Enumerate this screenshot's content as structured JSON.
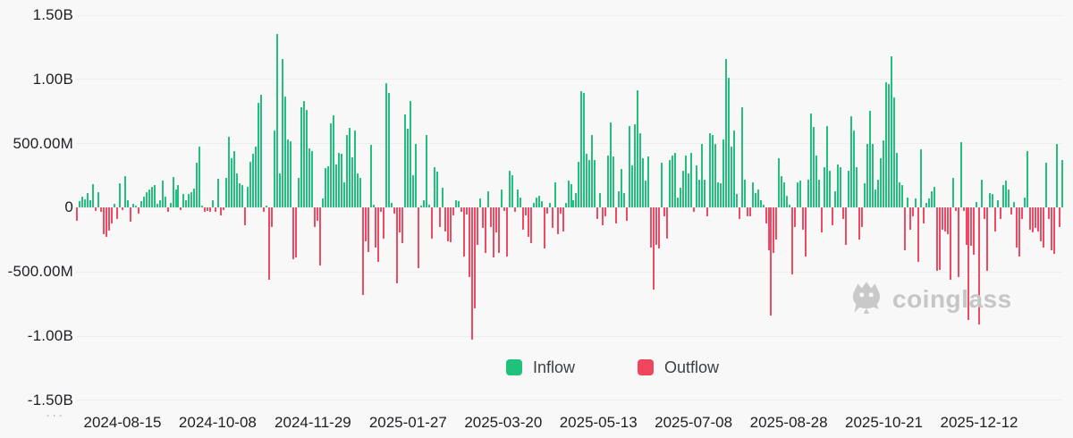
{
  "legend": {
    "inflow_label": "Inflow",
    "outflow_label": "Outflow"
  },
  "watermark": {
    "brand": "coinglass"
  },
  "misc": {
    "ellipsis": "···"
  },
  "colors": {
    "inflow": "#22c07e",
    "outflow": "#ef4a63",
    "legend_inflow_swatch": "#1ec27c",
    "legend_outflow_swatch": "#f0465d",
    "grid": "#eeeeee",
    "axis_text": "#1d1f23",
    "watermark_gray": "#c6c6c6",
    "background": "#f8f8f8"
  },
  "chart_data": {
    "type": "bar",
    "title": "",
    "xlabel": "",
    "ylabel": "",
    "grid": true,
    "legend_position": "bottom-center",
    "unit": "millions USD",
    "ylim_millions": [
      -1500,
      1500
    ],
    "y_ticks": [
      "1.50B",
      "1.00B",
      "500.00M",
      "0",
      "-500.00M",
      "-1.00B",
      "-1.50B"
    ],
    "y_tick_values_millions": [
      1500,
      1000,
      500,
      0,
      -500,
      -1000,
      -1500
    ],
    "x_ticks": [
      "2024-08-15",
      "2024-10-08",
      "2024-11-29",
      "2025-01-27",
      "2025-03-20",
      "2025-05-13",
      "2025-07-08",
      "2025-08-28",
      "2025-10-21",
      "2025-12-12"
    ],
    "series": [
      {
        "name": "Inflow",
        "meaning": "positive daily flow values"
      },
      {
        "name": "Outflow",
        "meaning": "negative daily flow values"
      }
    ],
    "values_millions": [
      -100,
      50,
      85,
      65,
      115,
      60,
      185,
      -25,
      120,
      -30,
      -205,
      -230,
      -180,
      -120,
      30,
      -90,
      190,
      -20,
      245,
      60,
      -110,
      30,
      15,
      -45,
      55,
      85,
      125,
      145,
      160,
      175,
      30,
      60,
      210,
      85,
      -30,
      40,
      240,
      140,
      180,
      -20,
      105,
      60,
      105,
      125,
      150,
      350,
      480,
      15,
      -30,
      -25,
      -30,
      60,
      -35,
      225,
      -60,
      -15,
      235,
      550,
      385,
      440,
      270,
      190,
      175,
      -140,
      165,
      360,
      420,
      480,
      815,
      880,
      -30,
      20,
      -565,
      -150,
      605,
      1355,
      270,
      1160,
      865,
      530,
      515,
      -400,
      -390,
      235,
      780,
      830,
      765,
      465,
      445,
      -150,
      -100,
      -450,
      70,
      310,
      325,
      660,
      720,
      340,
      430,
      420,
      200,
      570,
      620,
      395,
      605,
      270,
      235,
      -680,
      -265,
      -345,
      490,
      25,
      -310,
      -425,
      -30,
      -240,
      970,
      895,
      40,
      -45,
      -590,
      -195,
      -275,
      730,
      615,
      835,
      257,
      500,
      -470,
      15,
      60,
      570,
      25,
      -240,
      315,
      280,
      -148,
      153,
      -183,
      -264,
      -270,
      -60,
      60,
      50,
      -30,
      -380,
      -55,
      -540,
      -1030,
      -785,
      -287,
      72,
      -160,
      -356,
      130,
      -148,
      -390,
      -195,
      -356,
      140,
      -25,
      -380,
      290,
      257,
      -30,
      140,
      83,
      -170,
      -60,
      -229,
      -275,
      37,
      83,
      95,
      50,
      -321,
      -45,
      37,
      -160,
      200,
      -205,
      -45,
      -183,
      37,
      210,
      187,
      60,
      118,
      360,
      905,
      895,
      420,
      373,
      570,
      373,
      -90,
      118,
      -137,
      -67,
      408,
      663,
      397,
      -125,
      130,
      303,
      118,
      -100,
      640,
      327,
      651,
      917,
      581,
      385,
      210,
      397,
      -310,
      -635,
      -287,
      -321,
      350,
      -67,
      -240,
      373,
      408,
      430,
      83,
      153,
      290,
      408,
      268,
      430,
      -30,
      327,
      222,
      500,
      222,
      -67,
      581,
      570,
      500,
      200,
      188,
      535,
      1160,
      1010,
      477,
      605,
      107,
      -90,
      780,
      222,
      -67,
      -67,
      200,
      118,
      140,
      60,
      25,
      -125,
      -335,
      -840,
      -355,
      -250,
      385,
      245,
      200,
      95,
      25,
      -520,
      -150,
      200,
      210,
      -172,
      -380,
      222,
      735,
      627,
      408,
      222,
      -195,
      315,
      640,
      290,
      -137,
      130,
      337,
      315,
      -90,
      -287,
      290,
      710,
      605,
      315,
      -250,
      -150,
      188,
      500,
      755,
      500,
      140,
      222,
      385,
      523,
      975,
      963,
      1177,
      858,
      430,
      200,
      175,
      -335,
      83,
      -172,
      -67,
      72,
      -425,
      454,
      -125,
      37,
      72,
      130,
      164,
      -495,
      -485,
      -171,
      -183,
      -206,
      -565,
      234,
      -25,
      -540,
      512,
      -25,
      -287,
      -875,
      -298,
      -367,
      48,
      -910,
      222,
      -90,
      -495,
      118,
      107,
      -183,
      60,
      -90,
      176,
      210,
      141,
      -55,
      48,
      -310,
      -380,
      -90,
      83,
      442,
      -171,
      -194,
      -160,
      -183,
      -264,
      -310,
      350,
      -90,
      -334,
      -357,
      500,
      -150,
      370
    ]
  }
}
